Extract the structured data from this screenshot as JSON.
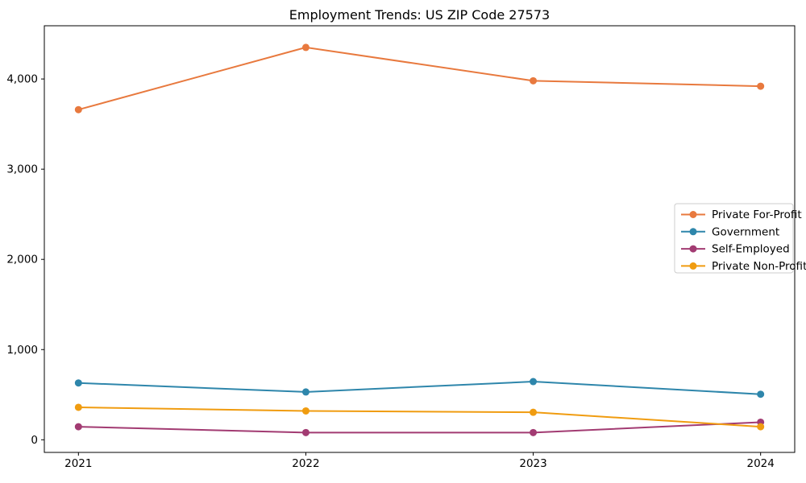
{
  "figure": {
    "background": "#ffffff"
  },
  "chart_data": {
    "type": "line",
    "title": "Employment Trends: US ZIP Code 27573",
    "xlabel": "",
    "ylabel": "",
    "x": [
      2021,
      2022,
      2023,
      2024
    ],
    "xtick_labels": [
      "2021",
      "2022",
      "2023",
      "2024"
    ],
    "ytick_values": [
      0,
      1000,
      2000,
      3000,
      4000
    ],
    "ytick_labels": [
      "0",
      "1,000",
      "2,000",
      "3,000",
      "4,000"
    ],
    "xlim": [
      2020.85,
      2024.15
    ],
    "ylim": [
      -140,
      4590
    ],
    "grid": false,
    "legend_position": "center-right",
    "axis_color": "#000000",
    "legend_border_color": "#cccccc",
    "series": [
      {
        "name": "Private For-Profit",
        "color": "#e8793e",
        "values": [
          3660,
          4350,
          3980,
          3920
        ]
      },
      {
        "name": "Government",
        "color": "#2e86ab",
        "values": [
          630,
          530,
          645,
          505
        ]
      },
      {
        "name": "Self-Employed",
        "color": "#a23b72",
        "values": [
          145,
          80,
          80,
          195
        ]
      },
      {
        "name": "Private Non-Profit",
        "color": "#f09c10",
        "values": [
          360,
          320,
          305,
          145
        ]
      }
    ]
  }
}
